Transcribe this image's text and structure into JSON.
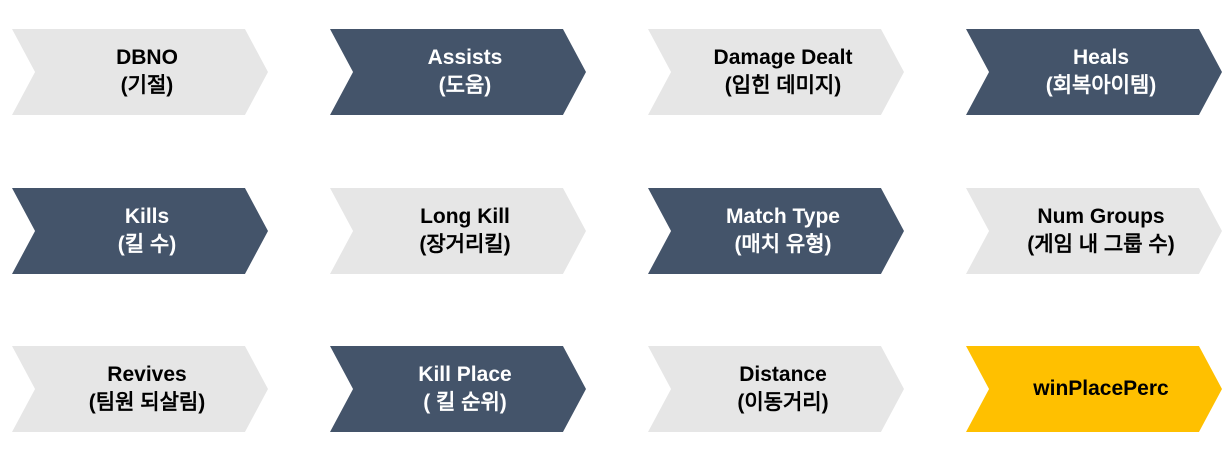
{
  "boxes": [
    {
      "title": "DBNO",
      "subtitle": "(기절)"
    },
    {
      "title": "Assists",
      "subtitle": "(도움)"
    },
    {
      "title": "Damage Dealt",
      "subtitle": "(입힌 데미지)"
    },
    {
      "title": "Heals",
      "subtitle": "(회복아이템)"
    },
    {
      "title": "Kills",
      "subtitle": "(킬 수)"
    },
    {
      "title": "Long Kill",
      "subtitle": "(장거리킬)"
    },
    {
      "title": "Match Type",
      "subtitle": "(매치 유형)"
    },
    {
      "title": "Num Groups",
      "subtitle": "(게임 내 그룹 수)"
    },
    {
      "title": "Revives",
      "subtitle": "(팀원 되살림)"
    },
    {
      "title": "Kill Place",
      "subtitle": "( 킬 순위)"
    },
    {
      "title": "Distance",
      "subtitle": "(이동거리)"
    },
    {
      "title": "winPlacePerc",
      "subtitle": ""
    }
  ],
  "colors": {
    "light": "#e6e6e6",
    "dark": "#44546a",
    "highlight": "#ffc000"
  }
}
